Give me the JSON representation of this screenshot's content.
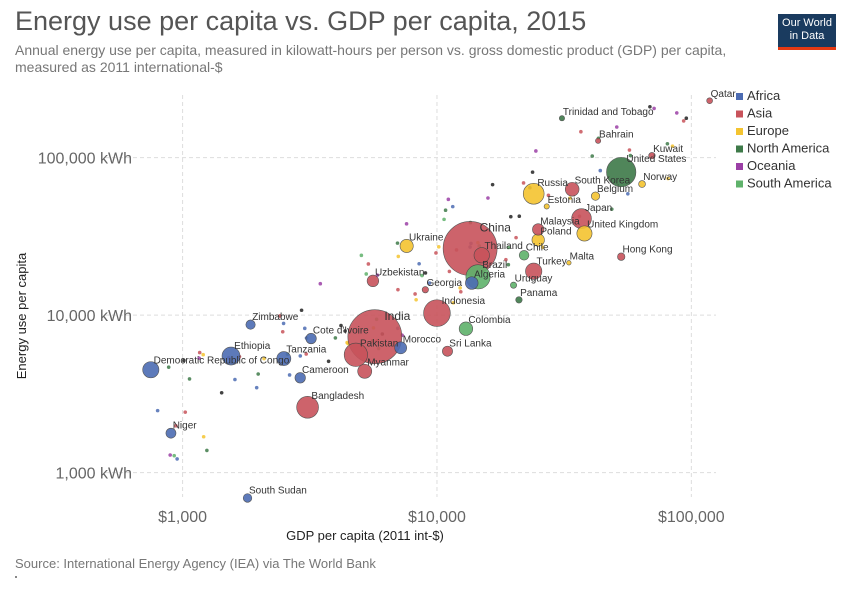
{
  "header": {
    "title": "Energy use per capita vs. GDP per capita, 2015",
    "subtitle": "Annual energy use per capita, measured in kilowatt-hours per person vs. gross domestic product (GDP) per capita, measured as 2011 international-$",
    "logo_line1": "Our World",
    "logo_line2": "in Data"
  },
  "footer": {
    "source": "Source: International Energy Agency (IEA) via The World Bank"
  },
  "colors": {
    "Africa": "#4c6cb3",
    "Asia": "#c8535b",
    "Europe": "#f4c430",
    "North America": "#3e7a49",
    "Oceania": "#9b3fa6",
    "South America": "#5fb26b",
    "Unlabeled": "#222222"
  },
  "chart_data": {
    "type": "scatter",
    "title": "Energy use per capita vs. GDP per capita, 2015",
    "xlabel": "GDP per capita (2011 int-$)",
    "ylabel": "Energy use per capita",
    "xscale": "log",
    "yscale": "log",
    "xlim": [
      650,
      125000
    ],
    "ylim": [
      700,
      250000
    ],
    "x_ticks": [
      {
        "value": 1000,
        "label": "$1,000"
      },
      {
        "value": 10000,
        "label": "$10,000"
      },
      {
        "value": 100000,
        "label": "$100,000"
      }
    ],
    "y_ticks": [
      {
        "value": 1000,
        "label": "1,000 kWh"
      },
      {
        "value": 10000,
        "label": "10,000 kWh"
      },
      {
        "value": 100000,
        "label": "100,000 kWh"
      }
    ],
    "grid": true,
    "legend_position": "right",
    "legend": [
      "Africa",
      "Asia",
      "Europe",
      "North America",
      "Oceania",
      "South America"
    ],
    "points": [
      {
        "label": "Qatar",
        "region": "Asia",
        "x": 118000,
        "y": 230000,
        "pop": 2.5
      },
      {
        "label": "Trinidad and Tobago",
        "region": "North America",
        "x": 31000,
        "y": 178000,
        "pop": 1.4
      },
      {
        "label": "Bahrain",
        "region": "Asia",
        "x": 43000,
        "y": 128000,
        "pop": 1.4
      },
      {
        "label": "Kuwait",
        "region": "Asia",
        "x": 70000,
        "y": 103000,
        "pop": 4.0
      },
      {
        "label": "United States",
        "region": "North America",
        "x": 53000,
        "y": 81000,
        "pop": 321
      },
      {
        "label": "Norway",
        "region": "Europe",
        "x": 64000,
        "y": 68000,
        "pop": 5.2
      },
      {
        "label": "South Korea",
        "region": "Asia",
        "x": 34000,
        "y": 63000,
        "pop": 50
      },
      {
        "label": "Russia",
        "region": "Europe",
        "x": 24000,
        "y": 59000,
        "pop": 144
      },
      {
        "label": "Belgium",
        "region": "Europe",
        "x": 42000,
        "y": 57000,
        "pop": 11
      },
      {
        "label": "Estonia",
        "region": "Europe",
        "x": 27000,
        "y": 49000,
        "pop": 1.3
      },
      {
        "label": "Japan",
        "region": "Asia",
        "x": 37000,
        "y": 41000,
        "pop": 127
      },
      {
        "label": "Malaysia",
        "region": "Asia",
        "x": 25000,
        "y": 35000,
        "pop": 30
      },
      {
        "label": "United Kingdom",
        "region": "Europe",
        "x": 38000,
        "y": 33000,
        "pop": 65
      },
      {
        "label": "Poland",
        "region": "Europe",
        "x": 25000,
        "y": 30000,
        "pop": 38
      },
      {
        "label": "China",
        "region": "Asia",
        "x": 13500,
        "y": 26500,
        "pop": 1380
      },
      {
        "label": "Ukraine",
        "region": "Europe",
        "x": 7600,
        "y": 27500,
        "pop": 45
      },
      {
        "label": "Thailand",
        "region": "Asia",
        "x": 15000,
        "y": 24000,
        "pop": 68
      },
      {
        "label": "Chile",
        "region": "South America",
        "x": 22000,
        "y": 24000,
        "pop": 18
      },
      {
        "label": "Hong Kong",
        "region": "Asia",
        "x": 53000,
        "y": 23500,
        "pop": 7.3
      },
      {
        "label": "Malta",
        "region": "Europe",
        "x": 33000,
        "y": 21500,
        "pop": 0.4
      },
      {
        "label": "Turkey",
        "region": "Asia",
        "x": 24000,
        "y": 19000,
        "pop": 79
      },
      {
        "label": "Brazil",
        "region": "South America",
        "x": 14500,
        "y": 17500,
        "pop": 206
      },
      {
        "label": "Uzbekistan",
        "region": "Asia",
        "x": 5600,
        "y": 16500,
        "pop": 31
      },
      {
        "label": "Algeria",
        "region": "Africa",
        "x": 13700,
        "y": 16000,
        "pop": 40
      },
      {
        "label": "Uruguay",
        "region": "South America",
        "x": 20000,
        "y": 15500,
        "pop": 3.4
      },
      {
        "label": "Georgia",
        "region": "Asia",
        "x": 9000,
        "y": 14500,
        "pop": 3.7
      },
      {
        "label": "Panama",
        "region": "North America",
        "x": 21000,
        "y": 12500,
        "pop": 4.0
      },
      {
        "label": "Indonesia",
        "region": "Asia",
        "x": 10000,
        "y": 10300,
        "pop": 258
      },
      {
        "label": "Zimbabwe",
        "region": "Africa",
        "x": 1850,
        "y": 8700,
        "pop": 16
      },
      {
        "label": "India",
        "region": "Asia",
        "x": 5700,
        "y": 7300,
        "pop": 1310
      },
      {
        "label": "Colombia",
        "region": "South America",
        "x": 13000,
        "y": 8200,
        "pop": 48
      },
      {
        "label": "Cote d'Ivoire",
        "region": "Africa",
        "x": 3200,
        "y": 7100,
        "pop": 23
      },
      {
        "label": "Pakistan",
        "region": "Asia",
        "x": 4800,
        "y": 5600,
        "pop": 189
      },
      {
        "label": "Morocco",
        "region": "Africa",
        "x": 7200,
        "y": 6200,
        "pop": 34
      },
      {
        "label": "Ethiopia",
        "region": "Africa",
        "x": 1550,
        "y": 5500,
        "pop": 100
      },
      {
        "label": "Tanzania",
        "region": "Africa",
        "x": 2500,
        "y": 5300,
        "pop": 53
      },
      {
        "label": "Sri Lanka",
        "region": "Asia",
        "x": 11000,
        "y": 5900,
        "pop": 21
      },
      {
        "label": "Democratic Republic of Congo",
        "region": "Africa",
        "x": 750,
        "y": 4500,
        "pop": 77
      },
      {
        "label": "Myanmar",
        "region": "Asia",
        "x": 5200,
        "y": 4400,
        "pop": 53
      },
      {
        "label": "Cameroon",
        "region": "Africa",
        "x": 2900,
        "y": 4000,
        "pop": 23
      },
      {
        "label": "Bangladesh",
        "region": "Asia",
        "x": 3100,
        "y": 2600,
        "pop": 161
      },
      {
        "label": "Niger",
        "region": "Africa",
        "x": 900,
        "y": 1780,
        "pop": 20
      },
      {
        "label": "South Sudan",
        "region": "Africa",
        "x": 1800,
        "y": 690,
        "pop": 12
      }
    ]
  }
}
